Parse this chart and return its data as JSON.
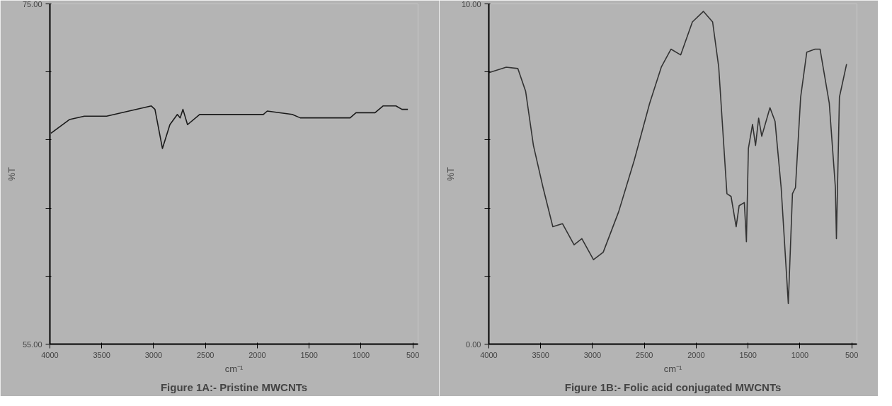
{
  "chart_data": [
    {
      "type": "line",
      "title": "Figure 1A:- Pristine MWCNTs",
      "xlabel": "cm⁻¹",
      "ylabel": "%T",
      "xlim": [
        4000,
        450
      ],
      "ylim": [
        55,
        75
      ],
      "xticks": [
        4000,
        3500,
        3000,
        2500,
        2000,
        1500,
        1000,
        500
      ],
      "yticks": [
        {
          "value": 55,
          "label": "55.00"
        },
        {
          "value": 59,
          "label": null
        },
        {
          "value": 63,
          "label": null
        },
        {
          "value": 67,
          "label": null
        },
        {
          "value": 71,
          "label": null
        },
        {
          "value": 75,
          "label": "75.00"
        }
      ],
      "grid": false,
      "line_style": "solid",
      "series": [
        {
          "color": "#1a1a1a",
          "x": [
            3990,
            3812,
            3668,
            3453,
            3238,
            3022,
            2987,
            2915,
            2843,
            2771,
            2744,
            2717,
            2673,
            2556,
            1942,
            1904,
            1779,
            1663,
            1586,
            1317,
            1105,
            1048,
            865,
            788,
            663,
            605,
            548
          ],
          "values": [
            67.4,
            68.2,
            68.4,
            68.4,
            68.7,
            69.0,
            68.8,
            66.5,
            67.9,
            68.5,
            68.3,
            68.8,
            67.9,
            68.5,
            68.5,
            68.7,
            68.6,
            68.5,
            68.3,
            68.3,
            68.3,
            68.6,
            68.6,
            69.0,
            69.0,
            68.8,
            68.8
          ]
        }
      ]
    },
    {
      "type": "line",
      "title": "Figure 1B:- Folic acid conjugated MWCNTs",
      "xlabel": "cm⁻¹",
      "ylabel": "%T",
      "xlim": [
        4000,
        450
      ],
      "ylim": [
        0,
        10
      ],
      "xticks": [
        4000,
        3500,
        3000,
        2500,
        2000,
        1500,
        1000,
        500
      ],
      "yticks": [
        {
          "value": 0,
          "label": "0.00"
        },
        {
          "value": 2,
          "label": null
        },
        {
          "value": 4,
          "label": null
        },
        {
          "value": 6,
          "label": null
        },
        {
          "value": 8,
          "label": null
        },
        {
          "value": 10,
          "label": "10.00"
        }
      ],
      "grid": false,
      "line_style": "solid",
      "series": [
        {
          "color": "#333333",
          "x": [
            4000,
            3832,
            3720,
            3645,
            3570,
            3477,
            3383,
            3290,
            3178,
            3103,
            2991,
            2897,
            2748,
            2598,
            2449,
            2337,
            2243,
            2150,
            2037,
            1931,
            1842,
            1783,
            1704,
            1664,
            1615,
            1586,
            1536,
            1516,
            1497,
            1457,
            1428,
            1398,
            1368,
            1289,
            1240,
            1181,
            1112,
            1072,
            1043,
            993,
            934,
            855,
            806,
            717,
            658,
            648,
            619,
            550
          ],
          "values": [
            7.98,
            8.14,
            8.1,
            7.43,
            5.84,
            4.6,
            3.45,
            3.54,
            2.92,
            3.1,
            2.48,
            2.7,
            3.89,
            5.4,
            7.08,
            8.14,
            8.67,
            8.5,
            9.47,
            9.78,
            9.47,
            8.14,
            4.42,
            4.34,
            3.45,
            4.07,
            4.16,
            3.01,
            5.75,
            6.46,
            5.84,
            6.64,
            6.11,
            6.95,
            6.55,
            4.6,
            1.19,
            4.42,
            4.6,
            7.26,
            8.58,
            8.67,
            8.67,
            7.08,
            4.6,
            3.1,
            7.26,
            8.23
          ]
        }
      ]
    }
  ]
}
